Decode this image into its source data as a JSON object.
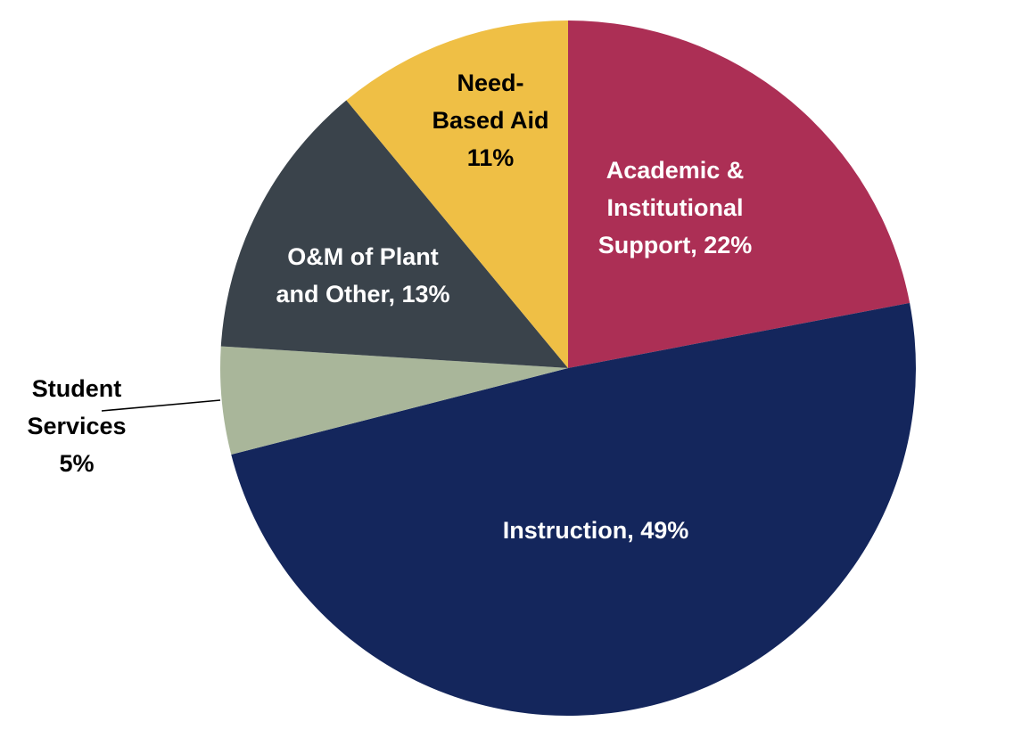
{
  "chart_data": {
    "type": "pie",
    "title": "",
    "legend": "none",
    "start_angle_deg": 0,
    "direction": "clockwise",
    "labels_on_slices": true,
    "background_color": "#ffffff",
    "series": [
      {
        "label": "Academic & Institutional Support",
        "value": 22,
        "color": "#AC2F55",
        "text_color": "#ffffff"
      },
      {
        "label": "Instruction",
        "value": 49,
        "color": "#14265C",
        "text_color": "#ffffff"
      },
      {
        "label": "Student Services",
        "value": 5,
        "color": "#A9B69A",
        "text_color": "#000000"
      },
      {
        "label": "O&M of Plant and Other",
        "value": 13,
        "color": "#3A434B",
        "text_color": "#ffffff"
      },
      {
        "label": "Need-Based Aid",
        "value": 11,
        "color": "#EFBF45",
        "text_color": "#000000"
      }
    ]
  },
  "labels": {
    "academic": "Academic &\nInstitutional\nSupport, 22%",
    "instruction": "Instruction, 49%",
    "student_services": "Student\nServices\n5%",
    "om_plant": "O&M of Plant\nand Other, 13%",
    "need_based_aid": "Need-\nBased Aid\n11%"
  }
}
